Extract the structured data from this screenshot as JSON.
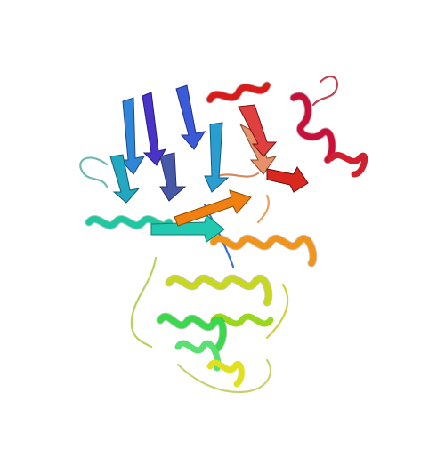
{
  "scene": {
    "background": "#ffffff",
    "subject": "protein-cartoon",
    "style": "rainbow-ribbon",
    "palette": {
      "blue": "#3b2fd6",
      "purple": "#5a3fb8",
      "sky": "#2f86d8",
      "cyan": "#1fb0c8",
      "teal": "#1fc8a0",
      "green": "#3ad84a",
      "lime": "#9ad820",
      "yellow": "#d8d820",
      "orange": "#f08a10",
      "salmon": "#e8906a",
      "red": "#d81a18",
      "crimson": "#c8103a"
    }
  }
}
